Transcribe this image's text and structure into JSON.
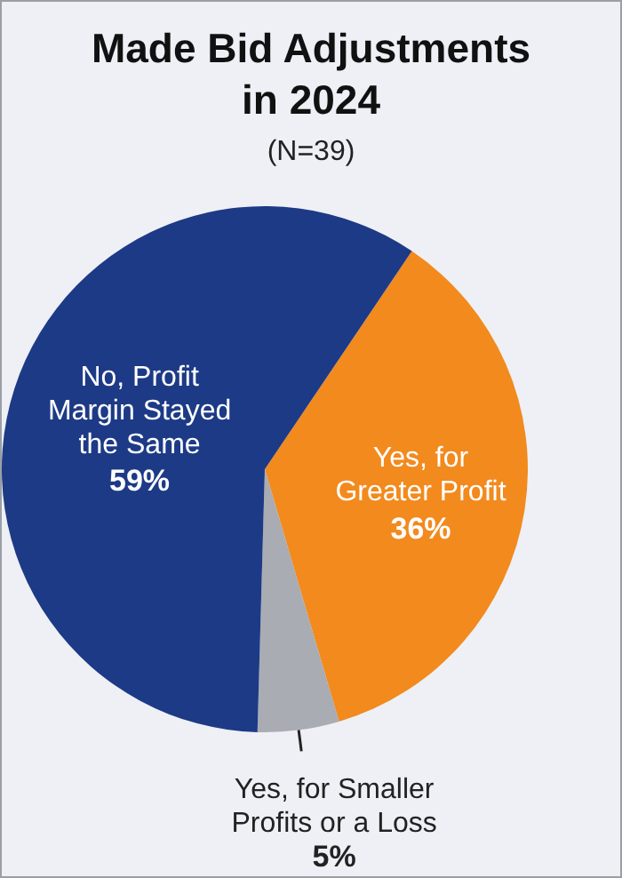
{
  "chart_data": {
    "type": "pie",
    "title": "Made Bid Adjustments in 2024",
    "subtitle": "(N=39)",
    "categories": [
      "Yes, for Greater Profit",
      "Yes, for Smaller Profits or a Loss",
      "No, Profit Margin Stayed the Same"
    ],
    "values": [
      36,
      5,
      59
    ],
    "colors": [
      "#f28a1e",
      "#a9acb2",
      "#1d3a86"
    ],
    "value_labels": [
      "36%",
      "5%",
      "59%"
    ],
    "legend": false
  }
}
